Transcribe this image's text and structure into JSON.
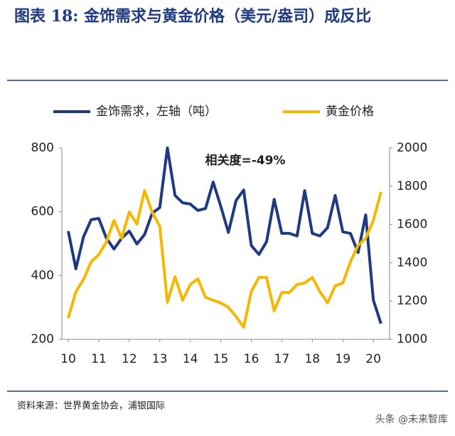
{
  "header": {
    "title": "图表 18: 金饰需求与黄金价格（美元/盎司）成反比"
  },
  "chart_data": {
    "type": "line",
    "annotation": "相关度=-49%",
    "x": [
      10,
      10.25,
      10.5,
      10.75,
      11,
      11.25,
      11.5,
      11.75,
      12,
      12.25,
      12.5,
      12.75,
      13,
      13.25,
      13.5,
      13.75,
      14,
      14.25,
      14.5,
      14.75,
      15,
      15.25,
      15.5,
      15.75,
      16,
      16.25,
      16.5,
      16.75,
      17,
      17.25,
      17.5,
      17.75,
      18,
      18.25,
      18.5,
      18.75,
      19,
      19.25,
      19.5,
      19.75,
      20,
      20.25
    ],
    "xlim": [
      10,
      20.3
    ],
    "xticks": [
      10,
      11,
      12,
      13,
      14,
      15,
      16,
      17,
      18,
      19,
      20
    ],
    "ylim": [
      200,
      800
    ],
    "yticks": [
      200,
      400,
      600,
      800
    ],
    "y2lim": [
      1000,
      2000
    ],
    "y2ticks": [
      1000,
      1200,
      1400,
      1600,
      1800,
      2000
    ],
    "series": [
      {
        "name": "金饰需求，左轴（吨）",
        "color": "#1f3a80",
        "axis": "y",
        "values": [
          539,
          421,
          521,
          575,
          579,
          517,
          483,
          517,
          539,
          499,
          528,
          595,
          613,
          800,
          651,
          628,
          624,
          604,
          610,
          693,
          617,
          535,
          635,
          668,
          494,
          466,
          506,
          639,
          532,
          532,
          524,
          666,
          532,
          524,
          550,
          651,
          537,
          532,
          472,
          590,
          323,
          249
        ]
      },
      {
        "name": "黄金价格",
        "color": "#f5b800",
        "axis": "y2",
        "values": [
          1111,
          1249,
          1312,
          1405,
          1442,
          1509,
          1621,
          1528,
          1665,
          1602,
          1777,
          1665,
          1591,
          1193,
          1327,
          1204,
          1286,
          1316,
          1219,
          1204,
          1190,
          1167,
          1119,
          1063,
          1249,
          1323,
          1323,
          1149,
          1245,
          1245,
          1286,
          1294,
          1323,
          1249,
          1190,
          1279,
          1294,
          1405,
          1491,
          1528,
          1621,
          1770
        ]
      }
    ]
  },
  "footer": {
    "source": "资料来源：世界黄金协会，浦银国际",
    "watermark": "头条 @未来智库"
  }
}
